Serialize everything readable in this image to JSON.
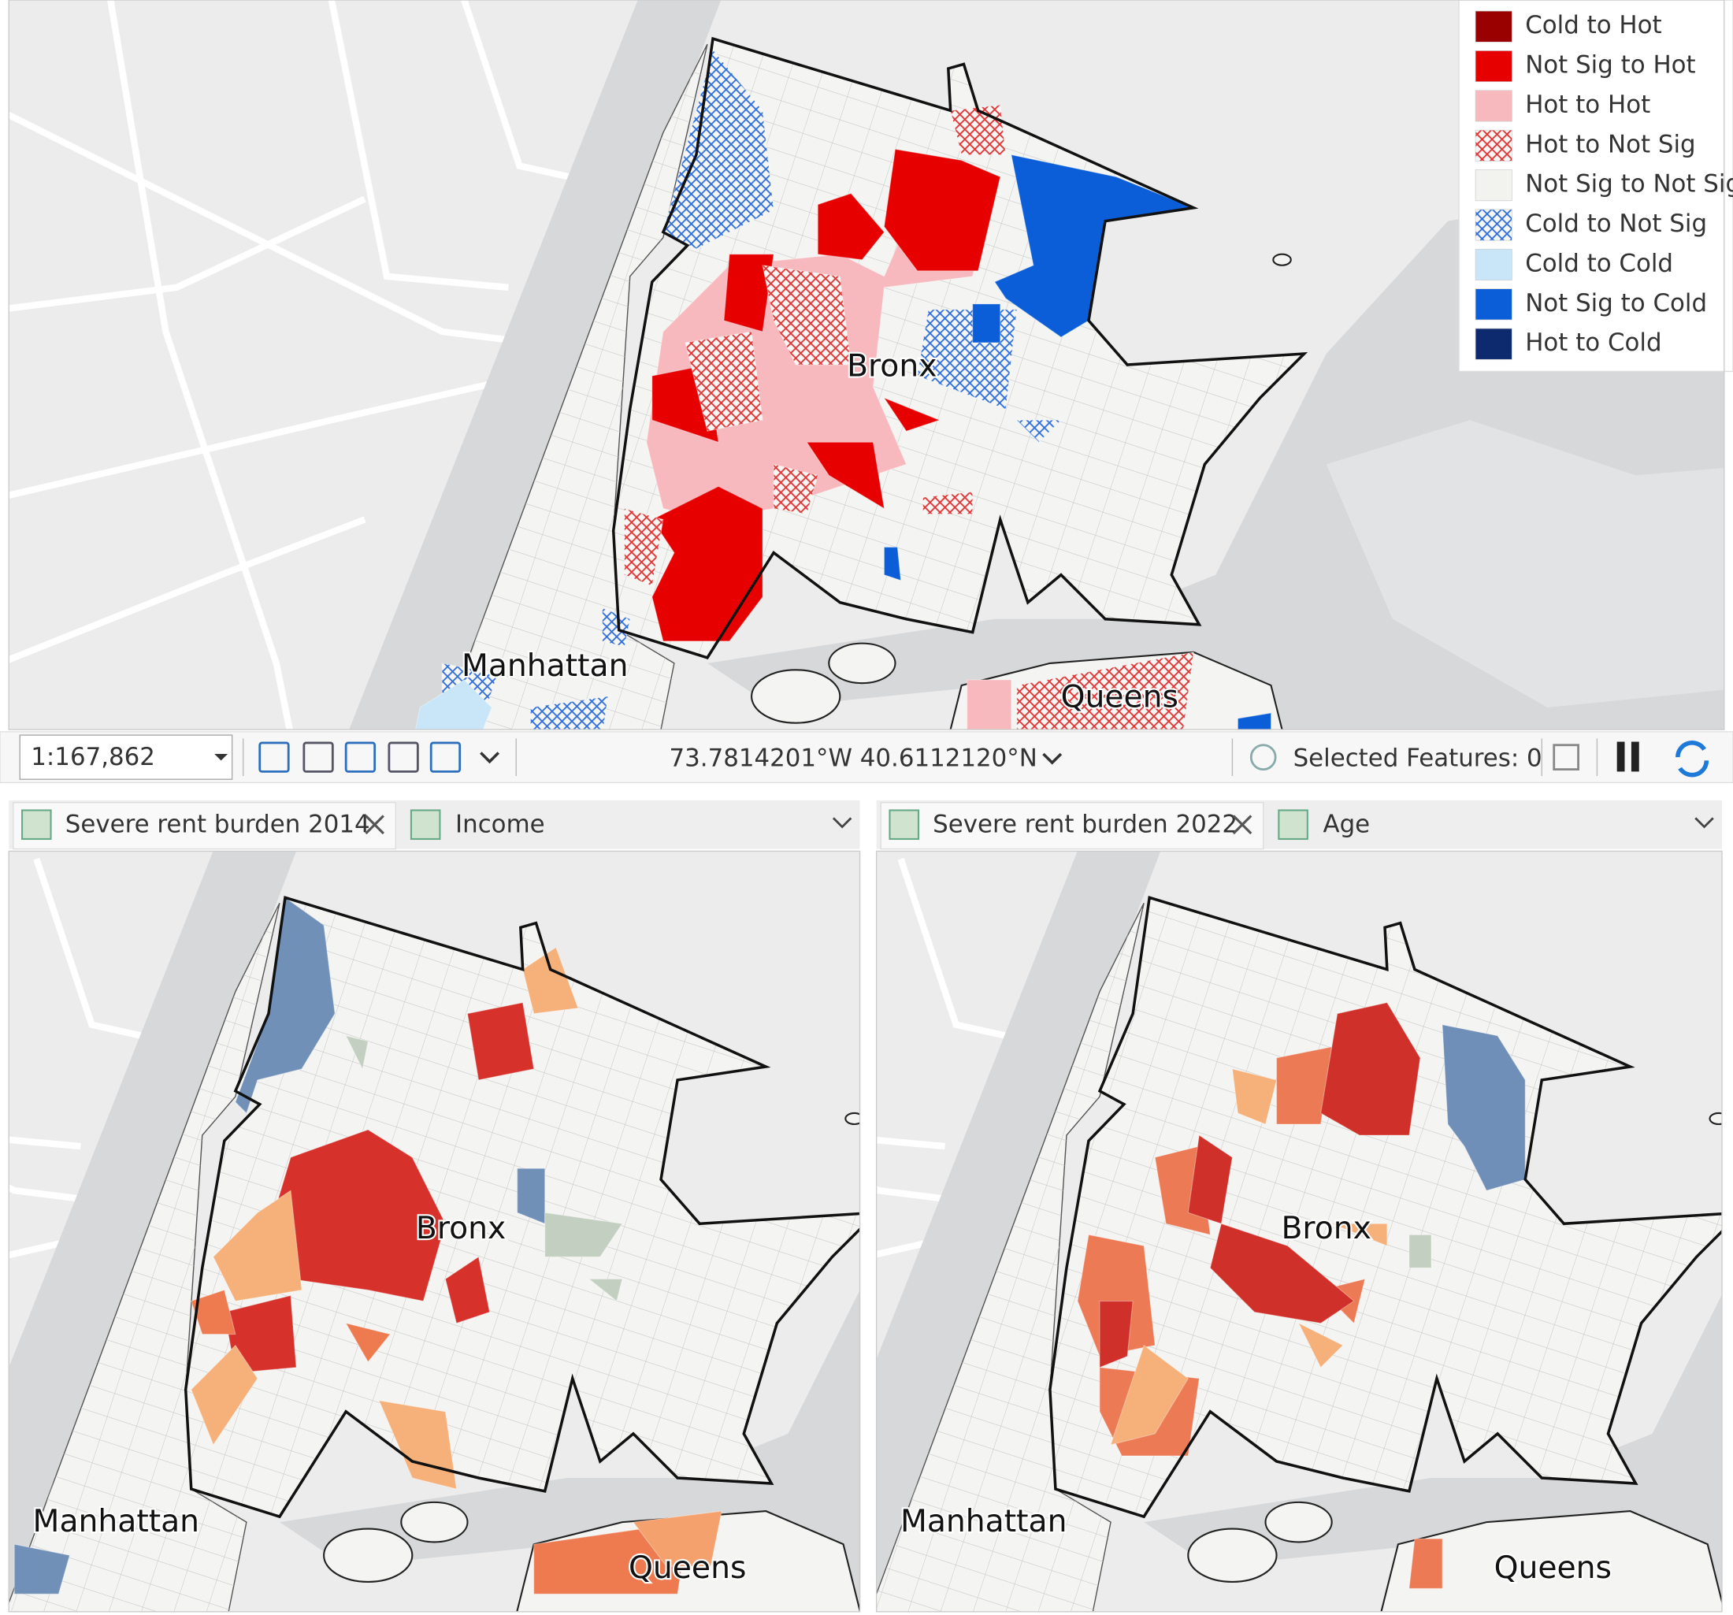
{
  "top_map": {
    "labels": [
      "Bronx",
      "Manhattan",
      "Queens"
    ],
    "legend": [
      {
        "label": "Cold to Hot",
        "color": "#990000",
        "hatch": false
      },
      {
        "label": "Not Sig to Hot",
        "color": "#e60000",
        "hatch": false
      },
      {
        "label": "Hot to Hot",
        "color": "#f7b9be",
        "hatch": false
      },
      {
        "label": "Hot to Not Sig",
        "color": "#e23434",
        "hatch": true
      },
      {
        "label": "Not Sig to Not Sig",
        "color": "#f2f2ee",
        "hatch": false
      },
      {
        "label": "Cold to Not Sig",
        "color": "#2f6fdc",
        "hatch": true
      },
      {
        "label": "Cold to Cold",
        "color": "#c8e6f7",
        "hatch": false
      },
      {
        "label": "Not Sig to Cold",
        "color": "#0b5ed7",
        "hatch": false
      },
      {
        "label": "Hot to Cold",
        "color": "#0d2a6e",
        "hatch": false
      }
    ]
  },
  "toolbar": {
    "scale": "1:167,862",
    "coordinates": "73.7814201°W 40.6112120°N",
    "selected": "Selected Features: 0"
  },
  "panes": [
    {
      "tabs": [
        "Severe rent burden 2014",
        "Income"
      ],
      "labels": [
        "Bronx",
        "Manhattan",
        "Queens"
      ]
    },
    {
      "tabs": [
        "Severe rent burden 2022",
        "Age"
      ],
      "labels": [
        "Bronx",
        "Manhattan",
        "Queens"
      ]
    }
  ]
}
